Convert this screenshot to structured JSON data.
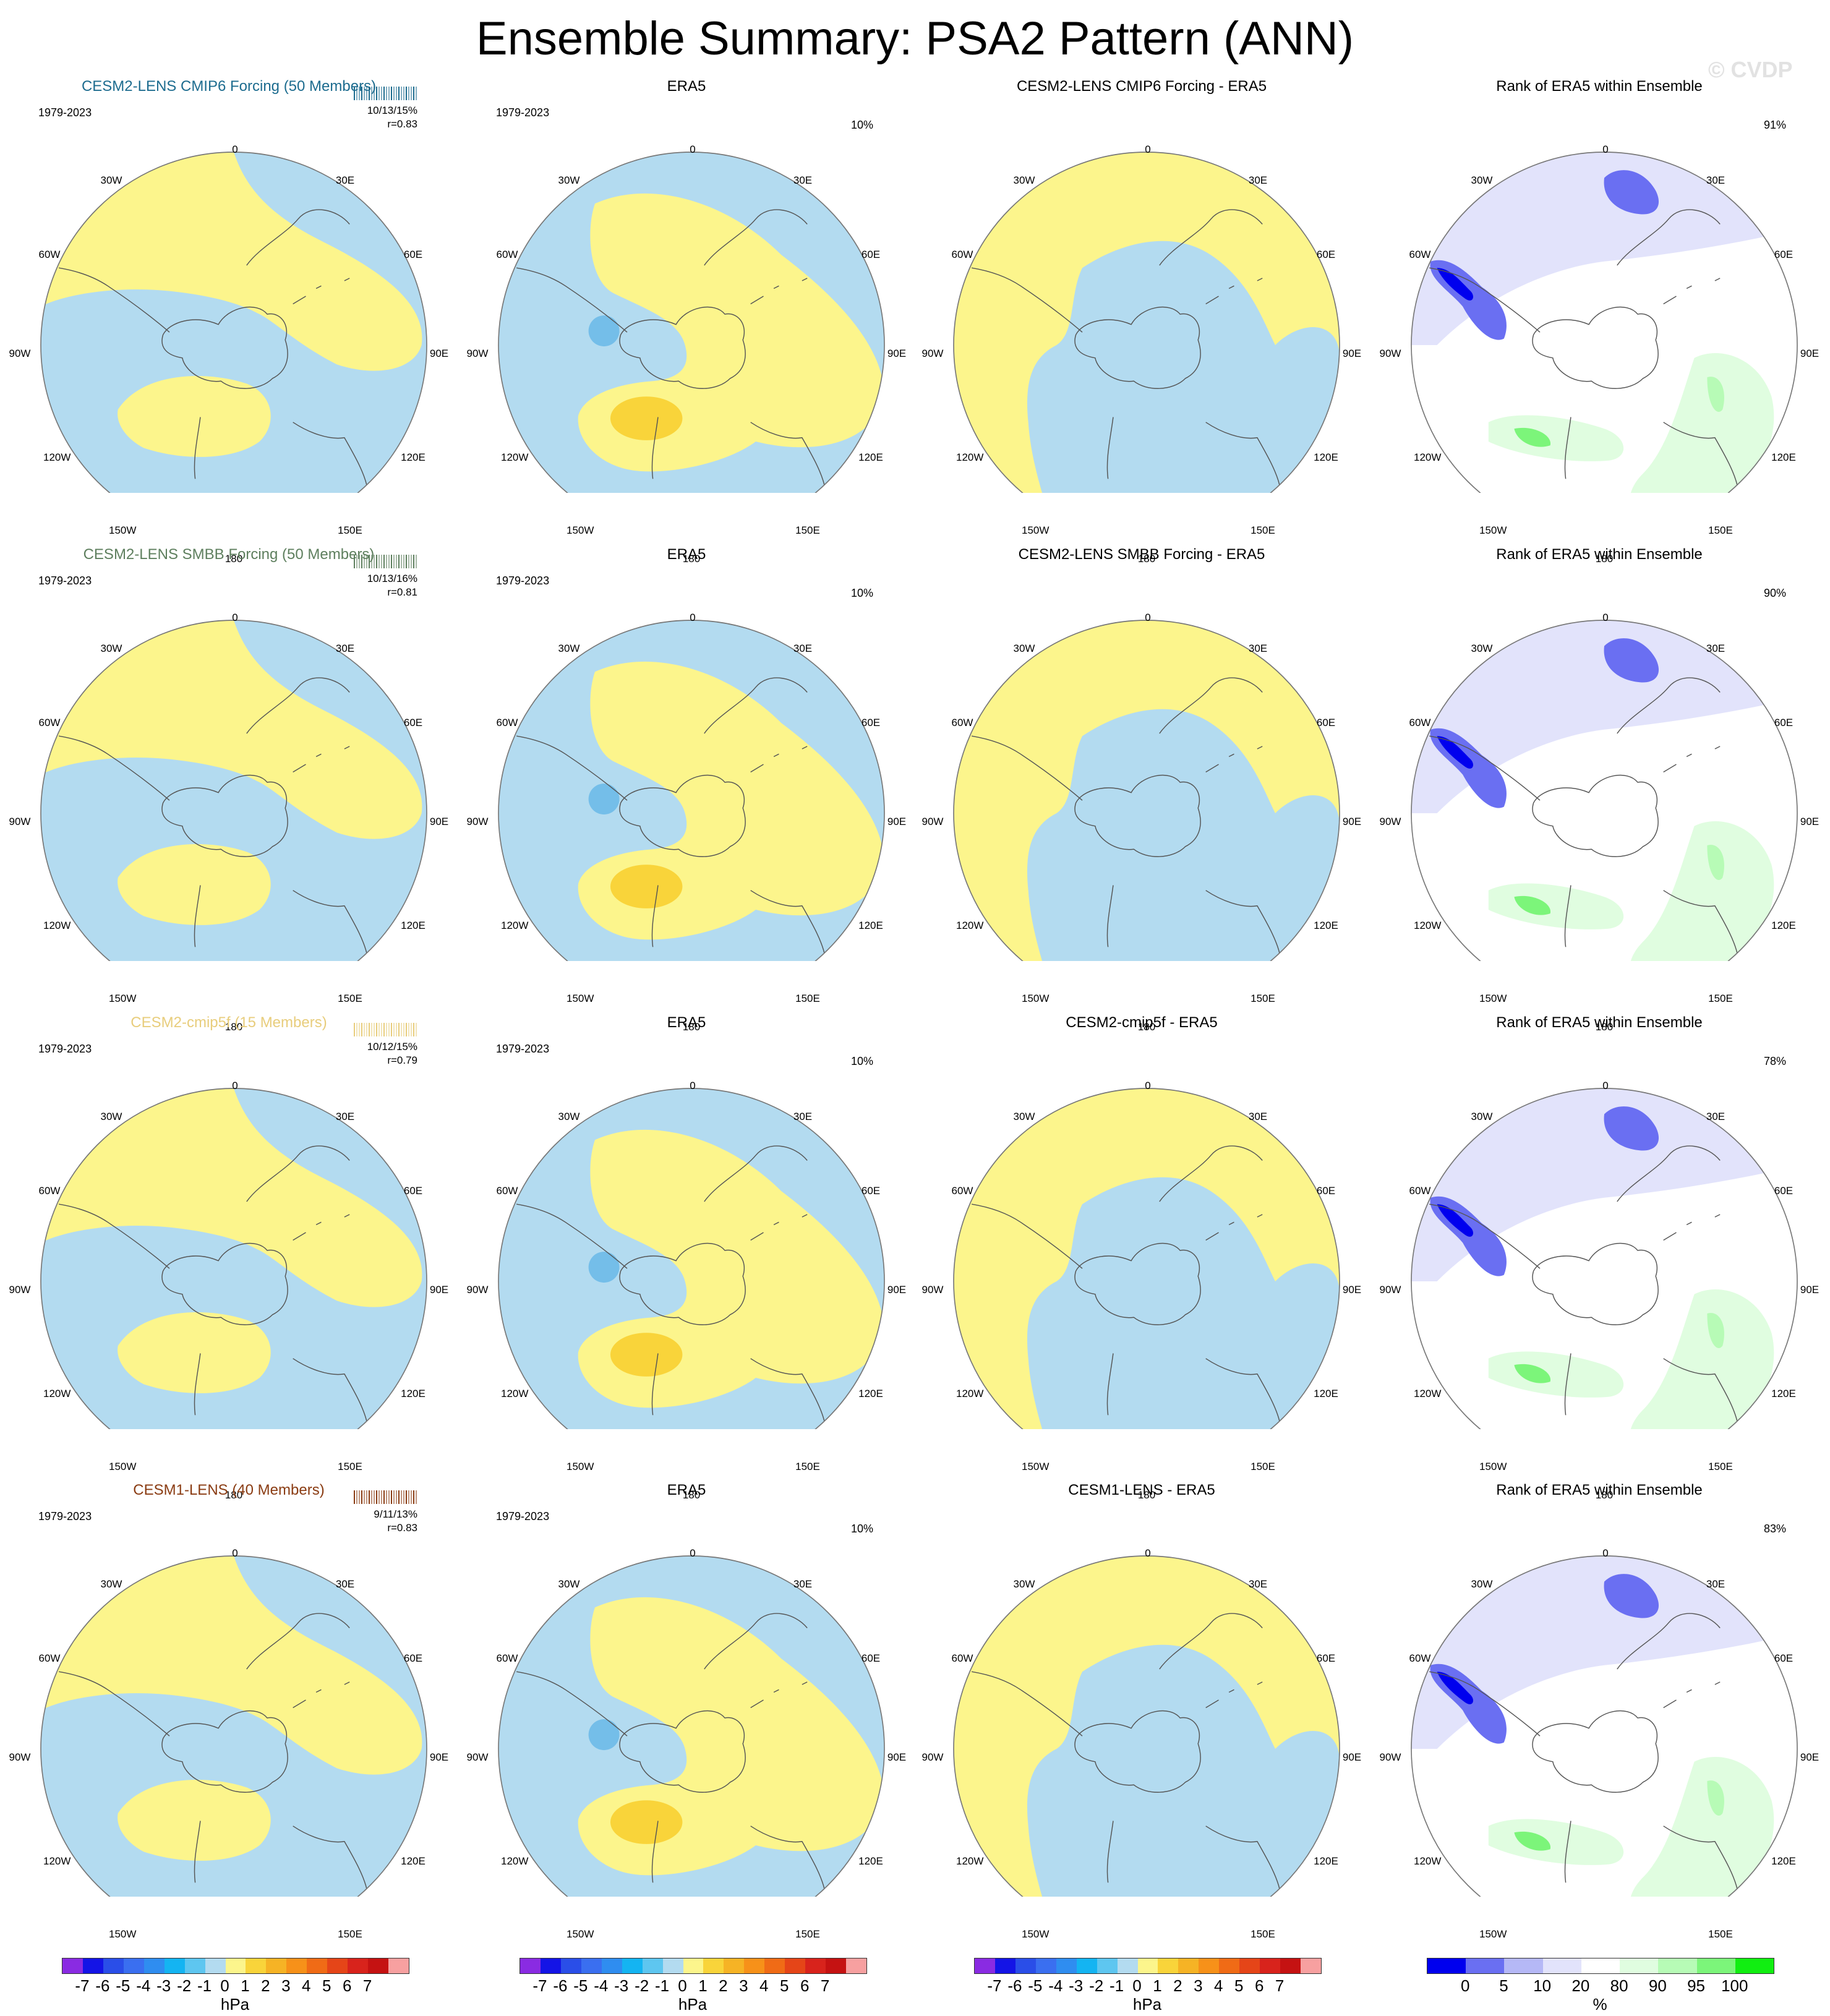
{
  "title": "Ensemble Summary: PSA2 Pattern (ANN)",
  "watermark": "© CVDP",
  "period": "1979-2023",
  "lon_labels": [
    "0",
    "30E",
    "60E",
    "90E",
    "120E",
    "150E",
    "180",
    "150W",
    "120W",
    "90W",
    "60W",
    "30W"
  ],
  "colors": {
    "pos_light": "#fcf58c",
    "pos_mid": "#f9d43a",
    "neg_light": "#b3dbf0",
    "neg_mid": "#74bee9",
    "rank_blue_dark": "#0000ee",
    "rank_blue_mid": "#6a6ff2",
    "rank_blue_light": "#b5b8f6",
    "rank_blue_pale": "#e2e3fb",
    "rank_green_pale": "#e0fde0",
    "rank_green_light": "#b7fbb6",
    "rank_green_mid": "#7cf57a",
    "rank_green_dark": "#11ee11",
    "coast": "#555555"
  },
  "rows": [
    {
      "model": "CESM2-LENS CMIP6 Forcing (50 Members)",
      "model_color": "#1d6c8f",
      "stats": "10/13/15%",
      "r": "r=0.83",
      "era_title": "ERA5",
      "era_pct": "10%",
      "diff_title": "CESM2-LENS CMIP6 Forcing - ERA5",
      "rank_title": "Rank of ERA5 within Ensemble",
      "rank_pct": "91%"
    },
    {
      "model": "CESM2-LENS SMBB Forcing (50 Members)",
      "model_color": "#5e7f5e",
      "stats": "10/13/16%",
      "r": "r=0.81",
      "era_title": "ERA5",
      "era_pct": "10%",
      "diff_title": "CESM2-LENS SMBB Forcing - ERA5",
      "rank_title": "Rank of ERA5 within Ensemble",
      "rank_pct": "90%"
    },
    {
      "model": "CESM2-cmip5f (15 Members)",
      "model_color": "#e8cd7c",
      "stats": "10/12/15%",
      "r": "r=0.79",
      "era_title": "ERA5",
      "era_pct": "10%",
      "diff_title": "CESM2-cmip5f - ERA5",
      "rank_title": "Rank of ERA5 within Ensemble",
      "rank_pct": "78%"
    },
    {
      "model": "CESM1-LENS (40 Members)",
      "model_color": "#8a3c13",
      "stats": "9/11/13%",
      "r": "r=0.83",
      "era_title": "ERA5",
      "era_pct": "10%",
      "diff_title": "CESM1-LENS - ERA5",
      "rank_title": "Rank of ERA5 within Ensemble",
      "rank_pct": "83%"
    }
  ],
  "colorbar_hpa": {
    "colors": [
      "#8a2be2",
      "#1414e6",
      "#2a4ee8",
      "#3a6ff0",
      "#2f8df0",
      "#14b4f2",
      "#5ec6f0",
      "#b3dbf0",
      "#fcf58c",
      "#f9d43a",
      "#f6b325",
      "#f79119",
      "#f06b16",
      "#e54518",
      "#d8231c",
      "#c51212",
      "#f7a0a0"
    ],
    "ticks": [
      "-7",
      "-6",
      "-5",
      "-4",
      "-3",
      "-2",
      "-1",
      "0",
      "1",
      "2",
      "3",
      "4",
      "5",
      "6",
      "7"
    ],
    "unit": "hPa"
  },
  "colorbar_rank": {
    "colors": [
      "#0000ee",
      "#6a6ff2",
      "#b5b8f6",
      "#e2e3fb",
      "#ffffff",
      "#e0fde0",
      "#b7fbb6",
      "#7cf57a",
      "#11ee11"
    ],
    "ticks": [
      "0",
      "5",
      "10",
      "20",
      "80",
      "90",
      "95",
      "100"
    ],
    "unit": "%"
  }
}
